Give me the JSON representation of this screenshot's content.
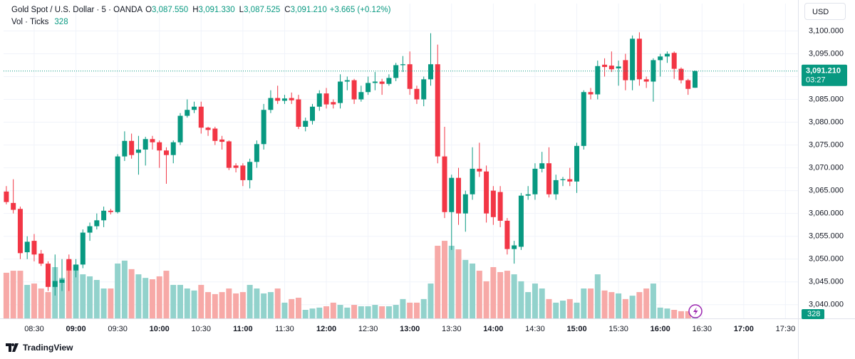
{
  "header": {
    "symbol": "Gold Spot / U.S. Dollar · 5 · OANDA",
    "ohlc": [
      {
        "key": "O",
        "value": "3,087.550"
      },
      {
        "key": "H",
        "value": "3,091.330"
      },
      {
        "key": "L",
        "value": "3,087.525"
      },
      {
        "key": "C",
        "value": "3,091.210"
      }
    ],
    "change": "+3.665 (+0.12%)",
    "volume_title": "Vol · Ticks",
    "volume_value": "328"
  },
  "currency": "USD",
  "brand": "TradingView",
  "chart_data": {
    "type": "candlestick",
    "x": [
      "08:10",
      "08:15",
      "08:20",
      "08:25",
      "08:30",
      "08:35",
      "08:40",
      "08:45",
      "08:50",
      "08:55",
      "09:00",
      "09:05",
      "09:10",
      "09:15",
      "09:20",
      "09:25",
      "09:30",
      "09:35",
      "09:40",
      "09:45",
      "09:50",
      "09:55",
      "10:00",
      "10:05",
      "10:10",
      "10:15",
      "10:20",
      "10:25",
      "10:30",
      "10:35",
      "10:40",
      "10:45",
      "10:50",
      "10:55",
      "11:00",
      "11:05",
      "11:10",
      "11:15",
      "11:20",
      "11:25",
      "11:30",
      "11:35",
      "11:40",
      "11:45",
      "11:50",
      "11:55",
      "12:00",
      "12:05",
      "12:10",
      "12:15",
      "12:20",
      "12:25",
      "12:30",
      "12:35",
      "12:40",
      "12:45",
      "12:50",
      "12:55",
      "13:00",
      "13:05",
      "13:10",
      "13:15",
      "13:20",
      "13:25",
      "13:30",
      "13:35",
      "13:40",
      "13:45",
      "13:50",
      "13:55",
      "14:00",
      "14:05",
      "14:10",
      "14:15",
      "14:20",
      "14:25",
      "14:30",
      "14:35",
      "14:40",
      "14:45",
      "14:50",
      "14:55",
      "15:00",
      "15:05",
      "15:10",
      "15:15",
      "15:20",
      "15:25",
      "15:30",
      "15:35",
      "15:40",
      "15:45",
      "15:50",
      "15:55",
      "16:00",
      "16:05",
      "16:10",
      "16:15",
      "16:20",
      "16:25"
    ],
    "open": [
      3064.8,
      3062.3,
      3061,
      3051.5,
      3054,
      3051.2,
      3049,
      3043.9,
      3044.8,
      3050,
      3047.5,
      3048.8,
      3055.8,
      3057.2,
      3058.5,
      3060.6,
      3060.3,
      3072.5,
      3075.9,
      3073.3,
      3074,
      3076.3,
      3075.6,
      3073.8,
      3072.8,
      3075.6,
      3081.4,
      3082.7,
      3083.4,
      3078.8,
      3078.6,
      3076.2,
      3075.8,
      3070.5,
      3070.5,
      3067.3,
      3071.3,
      3075.2,
      3082.7,
      3085.3,
      3084.7,
      3085.3,
      3085,
      3079,
      3080.3,
      3083.4,
      3086.3,
      3084.4,
      3084.2,
      3088.9,
      3089.2,
      3085,
      3086.6,
      3088.6,
      3088.9,
      3088.4,
      3089.7,
      3092.5,
      3092.7,
      3087.3,
      3085,
      3089.4,
      3092.7,
      3072.5,
      3060.3,
      3067.8,
      3060,
      3064.2,
      3069.8,
      3069.2,
      3065,
      3064.7,
      3058.4,
      3052.2,
      3052.7,
      3063.9,
      3064.2,
      3069.8,
      3071,
      3064.2,
      3067.3,
      3067.5,
      3067,
      3074.8,
      3086.6,
      3086.1,
      3092.6,
      3092.4,
      3091.8,
      3093.6,
      3089.2,
      3098.3,
      3089.4,
      3088.9,
      3093.6,
      3094.4,
      3095.2,
      3091.7,
      3089.2,
      3087.55
    ],
    "high": [
      3066,
      3067.5,
      3061.5,
      3055,
      3055.5,
      3052,
      3049.5,
      3051,
      3050,
      3051,
      3050,
      3056.5,
      3058,
      3060,
      3061.5,
      3061,
      3073,
      3078,
      3077.5,
      3077,
      3076.8,
      3077,
      3076,
      3074.5,
      3076,
      3082,
      3085,
      3084.5,
      3084.5,
      3079,
      3079,
      3077,
      3076,
      3071,
      3071,
      3072,
      3076,
      3084,
      3087,
      3088,
      3086,
      3086.5,
      3086,
      3081,
      3084,
      3087,
      3087.5,
      3085,
      3090.5,
      3090,
      3089.5,
      3088,
      3090,
      3091,
      3089.5,
      3090.5,
      3093,
      3094.5,
      3095.5,
      3088,
      3090,
      3099.5,
      3097,
      3079,
      3068.5,
      3070,
      3065,
      3074.5,
      3075.5,
      3070.5,
      3066,
      3066,
      3059,
      3054,
      3064.5,
      3066,
      3071,
      3073.5,
      3074.5,
      3068.5,
      3068,
      3070,
      3075.5,
      3087,
      3087.5,
      3093.5,
      3094,
      3095.5,
      3093.5,
      3095,
      3099,
      3099.7,
      3090,
      3094,
      3095,
      3095.5,
      3095.5,
      3092,
      3089.5,
      3091.33
    ],
    "low": [
      3062,
      3060,
      3050,
      3050,
      3049.5,
      3048.5,
      3043,
      3042,
      3043,
      3043,
      3046,
      3048,
      3054,
      3056.5,
      3057,
      3059.8,
      3060,
      3071.5,
      3072,
      3068.5,
      3070.5,
      3074,
      3070,
      3066.5,
      3071,
      3075,
      3081,
      3082,
      3077.5,
      3077,
      3075,
      3074,
      3069.5,
      3069,
      3066,
      3065.5,
      3070,
      3074,
      3082,
      3084,
      3084,
      3084,
      3078.5,
      3078,
      3079.5,
      3082.5,
      3083,
      3083,
      3083,
      3087,
      3084,
      3084.5,
      3086,
      3087,
      3086,
      3088,
      3089,
      3091,
      3086,
      3084,
      3083.5,
      3088,
      3071,
      3059,
      3052,
      3057.5,
      3056,
      3063,
      3068,
      3058,
      3057.5,
      3057,
      3051,
      3049,
      3052,
      3063,
      3063,
      3069,
      3063.5,
      3063,
      3066,
      3066,
      3064.5,
      3074,
      3085,
      3085,
      3090,
      3091,
      3088,
      3087,
      3087,
      3088,
      3087.5,
      3084.5,
      3090,
      3093,
      3089.5,
      3088.5,
      3086,
      3087.525
    ],
    "close": [
      3062.5,
      3060.8,
      3051.3,
      3053.8,
      3051,
      3049,
      3043.9,
      3045.2,
      3045.5,
      3047.5,
      3048.8,
      3055.8,
      3057.2,
      3058.5,
      3060.6,
      3060.3,
      3072.5,
      3075.9,
      3072.8,
      3074,
      3076.3,
      3075.6,
      3073.8,
      3072.8,
      3075.6,
      3081.4,
      3082.7,
      3083.4,
      3078.8,
      3078.3,
      3075.9,
      3075.7,
      3070,
      3070,
      3067.3,
      3071.3,
      3075.2,
      3082.7,
      3085.3,
      3084.7,
      3085.2,
      3084.8,
      3079,
      3080.3,
      3083.4,
      3086.3,
      3083.9,
      3083.9,
      3088.9,
      3089.2,
      3085,
      3086.6,
      3088.6,
      3088.9,
      3088.4,
      3089.7,
      3092.5,
      3092.7,
      3087.3,
      3085,
      3089.4,
      3092.7,
      3072.5,
      3060.3,
      3067.8,
      3060,
      3064.2,
      3069.8,
      3069.2,
      3060,
      3059.2,
      3058.4,
      3052.2,
      3053,
      3063.9,
      3064.2,
      3069.8,
      3071,
      3064.2,
      3067.3,
      3067.5,
      3067,
      3074.8,
      3086.6,
      3086.1,
      3092.3,
      3092.1,
      3091.6,
      3092.2,
      3089.2,
      3098.3,
      3089.4,
      3088.9,
      3093.6,
      3094.4,
      3095,
      3091.7,
      3089.2,
      3087.3,
      3091.21
    ],
    "volume": [
      2030,
      2120,
      2120,
      1490,
      1550,
      1330,
      1170,
      2280,
      1800,
      2600,
      2380,
      1960,
      1870,
      1710,
      1330,
      1330,
      2440,
      2570,
      2190,
      1960,
      1800,
      1740,
      1870,
      2120,
      1490,
      1490,
      1330,
      1240,
      1490,
      1170,
      1080,
      1170,
      1330,
      1110,
      1170,
      1490,
      1330,
      1110,
      1170,
      1330,
      700,
      860,
      920,
      380,
      440,
      480,
      540,
      700,
      600,
      480,
      600,
      540,
      540,
      600,
      540,
      540,
      600,
      860,
      700,
      700,
      860,
      1550,
      3230,
      3450,
      3230,
      3070,
      2600,
      2440,
      2120,
      1650,
      2280,
      2060,
      2120,
      1960,
      1650,
      1170,
      1550,
      1330,
      860,
      700,
      790,
      860,
      700,
      1330,
      1330,
      1960,
      1240,
      1170,
      1110,
      860,
      1010,
      1170,
      1330,
      1550,
      480,
      440,
      380,
      320,
      320,
      328
    ],
    "ylim": [
      3037,
      3106
    ],
    "yticks": [
      {
        "value": 3040,
        "label": "3,040.000"
      },
      {
        "value": 3045,
        "label": "3,045.000"
      },
      {
        "value": 3050,
        "label": "3,050.000"
      },
      {
        "value": 3055,
        "label": "3,055.000"
      },
      {
        "value": 3060,
        "label": "3,060.000"
      },
      {
        "value": 3065,
        "label": "3,065.000"
      },
      {
        "value": 3070,
        "label": "3,070.000"
      },
      {
        "value": 3075,
        "label": "3,075.000"
      },
      {
        "value": 3080,
        "label": "3,080.000"
      },
      {
        "value": 3085,
        "label": "3,085.000"
      },
      {
        "value": 3090,
        "label": "3,090.000"
      },
      {
        "value": 3095,
        "label": "3,095.000"
      },
      {
        "value": 3100,
        "label": "3,100.000"
      }
    ],
    "xlim": [
      "08:08",
      "17:39"
    ],
    "xticks": [
      "08:30",
      "09:00",
      "09:30",
      "10:00",
      "10:30",
      "11:00",
      "11:30",
      "12:00",
      "12:30",
      "13:00",
      "13:30",
      "14:00",
      "14:30",
      "15:00",
      "15:30",
      "16:00",
      "16:30",
      "17:00",
      "17:30"
    ],
    "vlim": [
      0,
      14000
    ],
    "last_price_label": "3,091.210",
    "countdown": "03:27",
    "volume_label": "328",
    "up_color": "#089981",
    "down_color": "#f23645",
    "up_volume_color": "#92d2cc",
    "down_volume_color": "#f7a9a7"
  }
}
